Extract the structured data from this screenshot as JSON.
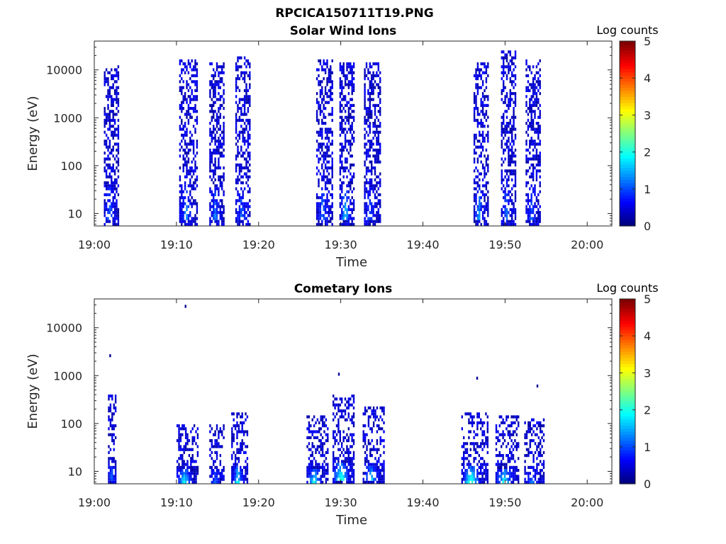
{
  "figure_title": "RPCICA150711T19.PNG",
  "chart_data": [
    {
      "type": "heatmap",
      "title": "Solar Wind Ions",
      "xlabel": "Time",
      "ylabel": "Energy (eV)",
      "x_range": [
        "19:00",
        "20:03"
      ],
      "y_range_ev": [
        5.5,
        40000
      ],
      "y_scale": "log",
      "x_ticks": [
        "19:00",
        "19:10",
        "19:20",
        "19:30",
        "19:40",
        "19:50",
        "20:00"
      ],
      "y_ticks": [
        "10",
        "100",
        "1000",
        "10000"
      ],
      "colorbar": {
        "label": "Log counts",
        "range": [
          0,
          5
        ],
        "ticks": [
          "0",
          "1",
          "2",
          "3",
          "4",
          "5"
        ]
      },
      "bursts": [
        {
          "t0": "19:01:10",
          "t1": "19:02:50",
          "emax_ev": 14000,
          "peak_log_counts": 1.1
        },
        {
          "t0": "19:10:20",
          "t1": "19:12:30",
          "emax_ev": 18000,
          "peak_log_counts": 1.3
        },
        {
          "t0": "19:14:00",
          "t1": "19:15:50",
          "emax_ev": 16000,
          "peak_log_counts": 1.2
        },
        {
          "t0": "19:17:10",
          "t1": "19:19:00",
          "emax_ev": 22000,
          "peak_log_counts": 1.1
        },
        {
          "t0": "19:27:00",
          "t1": "19:29:00",
          "emax_ev": 18000,
          "peak_log_counts": 1.2
        },
        {
          "t0": "19:29:50",
          "t1": "19:31:40",
          "emax_ev": 16000,
          "peak_log_counts": 1.8
        },
        {
          "t0": "19:32:50",
          "t1": "19:34:50",
          "emax_ev": 15000,
          "peak_log_counts": 1.1
        },
        {
          "t0": "19:46:10",
          "t1": "19:47:50",
          "emax_ev": 16000,
          "peak_log_counts": 1.5
        },
        {
          "t0": "19:49:30",
          "t1": "19:51:10",
          "emax_ev": 26000,
          "peak_log_counts": 1.1
        },
        {
          "t0": "19:52:30",
          "t1": "19:54:10",
          "emax_ev": 17000,
          "peak_log_counts": 1.1
        }
      ]
    },
    {
      "type": "heatmap",
      "title": "Cometary Ions",
      "xlabel": "Time",
      "ylabel": "Energy (eV)",
      "x_range": [
        "19:00",
        "20:03"
      ],
      "y_range_ev": [
        5.5,
        40000
      ],
      "y_scale": "log",
      "x_ticks": [
        "19:00",
        "19:10",
        "19:20",
        "19:30",
        "19:40",
        "19:50",
        "20:00"
      ],
      "y_ticks": [
        "10",
        "100",
        "1000",
        "10000"
      ],
      "colorbar": {
        "label": "Log counts",
        "range": [
          0,
          5
        ],
        "ticks": [
          "0",
          "1",
          "2",
          "3",
          "4",
          "5"
        ]
      },
      "bursts": [
        {
          "t0": "19:01:40",
          "t1": "19:02:40",
          "emax_ev": 450,
          "peak_log_counts": 1.3
        },
        {
          "t0": "19:10:00",
          "t1": "19:12:30",
          "emax_ev": 110,
          "peak_log_counts": 2.1
        },
        {
          "t0": "19:14:00",
          "t1": "19:15:40",
          "emax_ev": 110,
          "peak_log_counts": 1.0
        },
        {
          "t0": "19:16:40",
          "t1": "19:18:40",
          "emax_ev": 180,
          "peak_log_counts": 2.0
        },
        {
          "t0": "19:25:50",
          "t1": "19:28:20",
          "emax_ev": 160,
          "peak_log_counts": 2.0
        },
        {
          "t0": "19:29:00",
          "t1": "19:31:40",
          "emax_ev": 420,
          "peak_log_counts": 2.6
        },
        {
          "t0": "19:32:40",
          "t1": "19:35:20",
          "emax_ev": 230,
          "peak_log_counts": 1.9
        },
        {
          "t0": "19:44:40",
          "t1": "19:47:50",
          "emax_ev": 180,
          "peak_log_counts": 2.4
        },
        {
          "t0": "19:48:50",
          "t1": "19:51:40",
          "emax_ev": 150,
          "peak_log_counts": 2.0
        },
        {
          "t0": "19:52:20",
          "t1": "19:54:40",
          "emax_ev": 130,
          "peak_log_counts": 1.1
        }
      ],
      "isolated_points": [
        {
          "t": "19:11:00",
          "e_ev": 30000
        },
        {
          "t": "19:01:50",
          "e_ev": 2800
        },
        {
          "t": "19:29:40",
          "e_ev": 1150
        },
        {
          "t": "19:46:30",
          "e_ev": 950
        },
        {
          "t": "19:53:50",
          "e_ev": 650
        }
      ]
    }
  ]
}
